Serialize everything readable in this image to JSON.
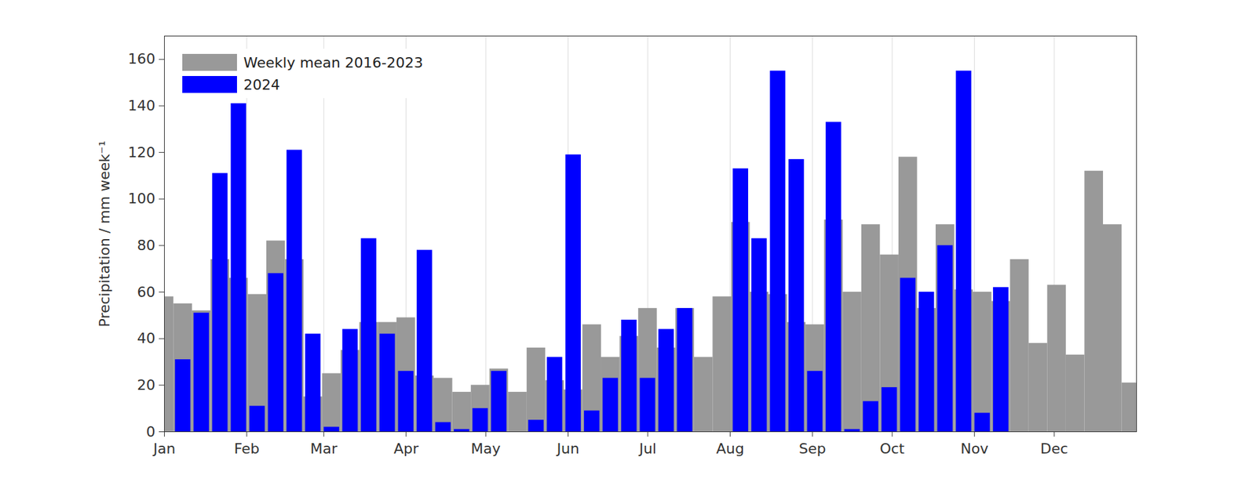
{
  "chart_data": {
    "type": "bar",
    "ylabel": "Precipitation / mm week⁻¹",
    "x": [
      0,
      7,
      14,
      21,
      28,
      35,
      42,
      49,
      56,
      63,
      70,
      77,
      84,
      91,
      98,
      105,
      112,
      119,
      126,
      133,
      140,
      147,
      154,
      161,
      168,
      175,
      182,
      189,
      196,
      203,
      210,
      217,
      224,
      231,
      238,
      245,
      252,
      259,
      266,
      273,
      280,
      287,
      294,
      301,
      308,
      315,
      322,
      329,
      336,
      343,
      350,
      357,
      364
    ],
    "series": [
      {
        "name": "Weekly mean 2016-2023",
        "color": "#999999",
        "values": [
          58,
          55,
          52,
          74,
          66,
          59,
          82,
          74,
          15,
          25,
          35,
          47,
          47,
          49,
          24,
          23,
          17,
          20,
          27,
          17,
          36,
          22,
          18,
          46,
          32,
          41,
          53,
          36,
          53,
          32,
          58,
          90,
          60,
          59,
          47,
          46,
          91,
          60,
          89,
          76,
          118,
          53,
          89,
          61,
          60,
          56,
          74,
          38,
          63,
          33,
          112,
          89,
          21
        ]
      },
      {
        "name": "2024",
        "color": "#0000ff",
        "values": [
          null,
          31,
          51,
          111,
          141,
          11,
          68,
          121,
          42,
          2,
          44,
          83,
          42,
          26,
          78,
          4,
          1,
          10,
          26,
          0,
          5,
          32,
          119,
          9,
          23,
          48,
          23,
          44,
          53,
          0,
          0,
          113,
          83,
          155,
          117,
          26,
          133,
          1,
          13,
          19,
          66,
          60,
          80,
          155,
          8,
          62,
          null,
          null,
          null,
          null,
          null,
          null,
          null
        ]
      }
    ],
    "xlim": [
      0,
      366
    ],
    "xticks": [
      {
        "value": 0,
        "label": "Jan"
      },
      {
        "value": 31,
        "label": "Feb"
      },
      {
        "value": 60,
        "label": "Mar"
      },
      {
        "value": 91,
        "label": "Apr"
      },
      {
        "value": 121,
        "label": "May"
      },
      {
        "value": 152,
        "label": "Jun"
      },
      {
        "value": 182,
        "label": "Jul"
      },
      {
        "value": 213,
        "label": "Aug"
      },
      {
        "value": 244,
        "label": "Sep"
      },
      {
        "value": 274,
        "label": "Oct"
      },
      {
        "value": 305,
        "label": "Nov"
      },
      {
        "value": 335,
        "label": "Dec"
      }
    ],
    "ylim": [
      0,
      170
    ],
    "yticks": [
      0,
      20,
      40,
      60,
      80,
      100,
      120,
      140,
      160
    ],
    "grid": true,
    "legend": "top-left"
  }
}
